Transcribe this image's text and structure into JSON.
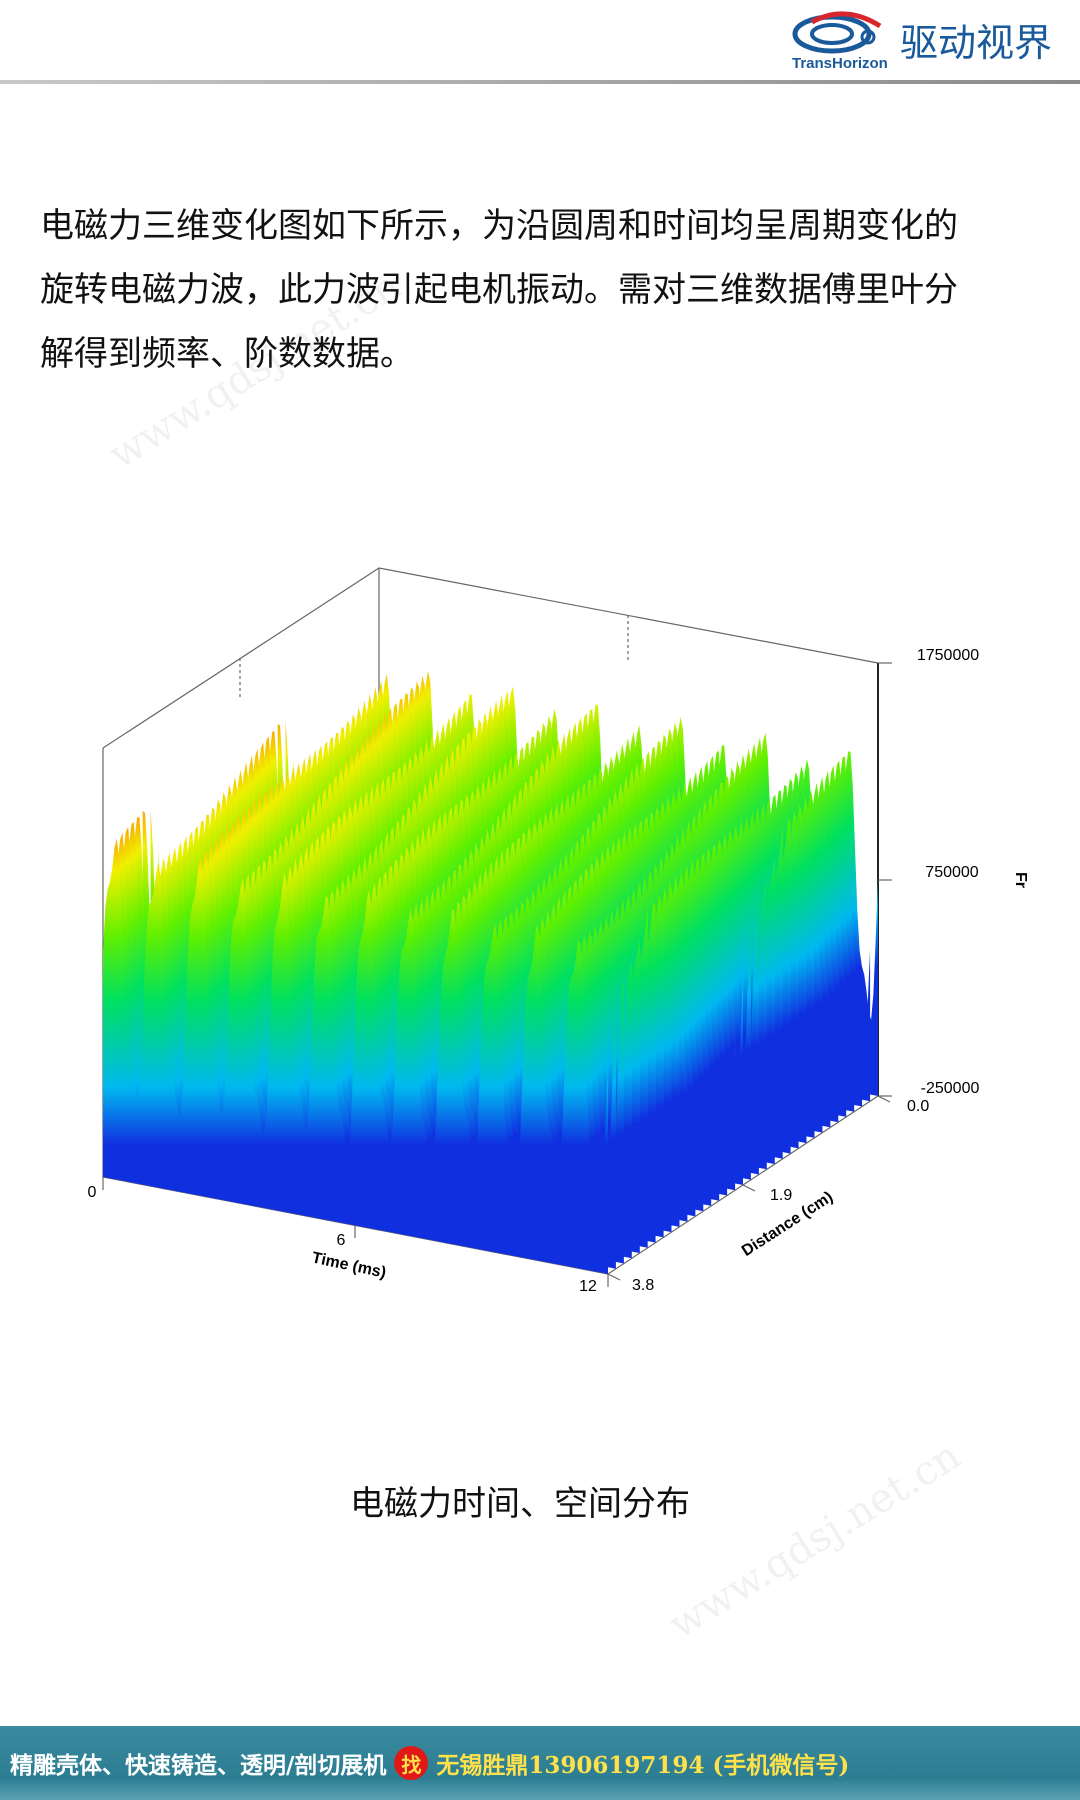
{
  "header": {
    "brand_en": "TransHorizon",
    "brand_cn": "驱动视界"
  },
  "body": {
    "lines": [
      "电磁力三维变化图如下所示，为沿圆周和时间均呈周期变化的",
      "旋转电磁力波，此力波引起电机振动。需对三维数据傅里叶分",
      "解得到频率、阶数数据。"
    ]
  },
  "figure": {
    "z_axis": {
      "label": "Fr",
      "ticks": [
        "1750000",
        "750000",
        "-250000"
      ]
    },
    "distance_axis": {
      "label": "Distance (cm)",
      "ticks": [
        "0.0",
        "1.9",
        "3.8"
      ]
    },
    "time_axis": {
      "label": "Time (ms)",
      "ticks": [
        "0",
        "6",
        "12"
      ]
    },
    "caption": "电磁力时间、空间分布"
  },
  "watermark": "www.qdsj.net.cn",
  "footer": {
    "left": "精雕壳体、快速铸造、透明/剖切展机",
    "badge": "找",
    "right": "无锡胜鼎13906197194 (手机微信号)"
  }
}
